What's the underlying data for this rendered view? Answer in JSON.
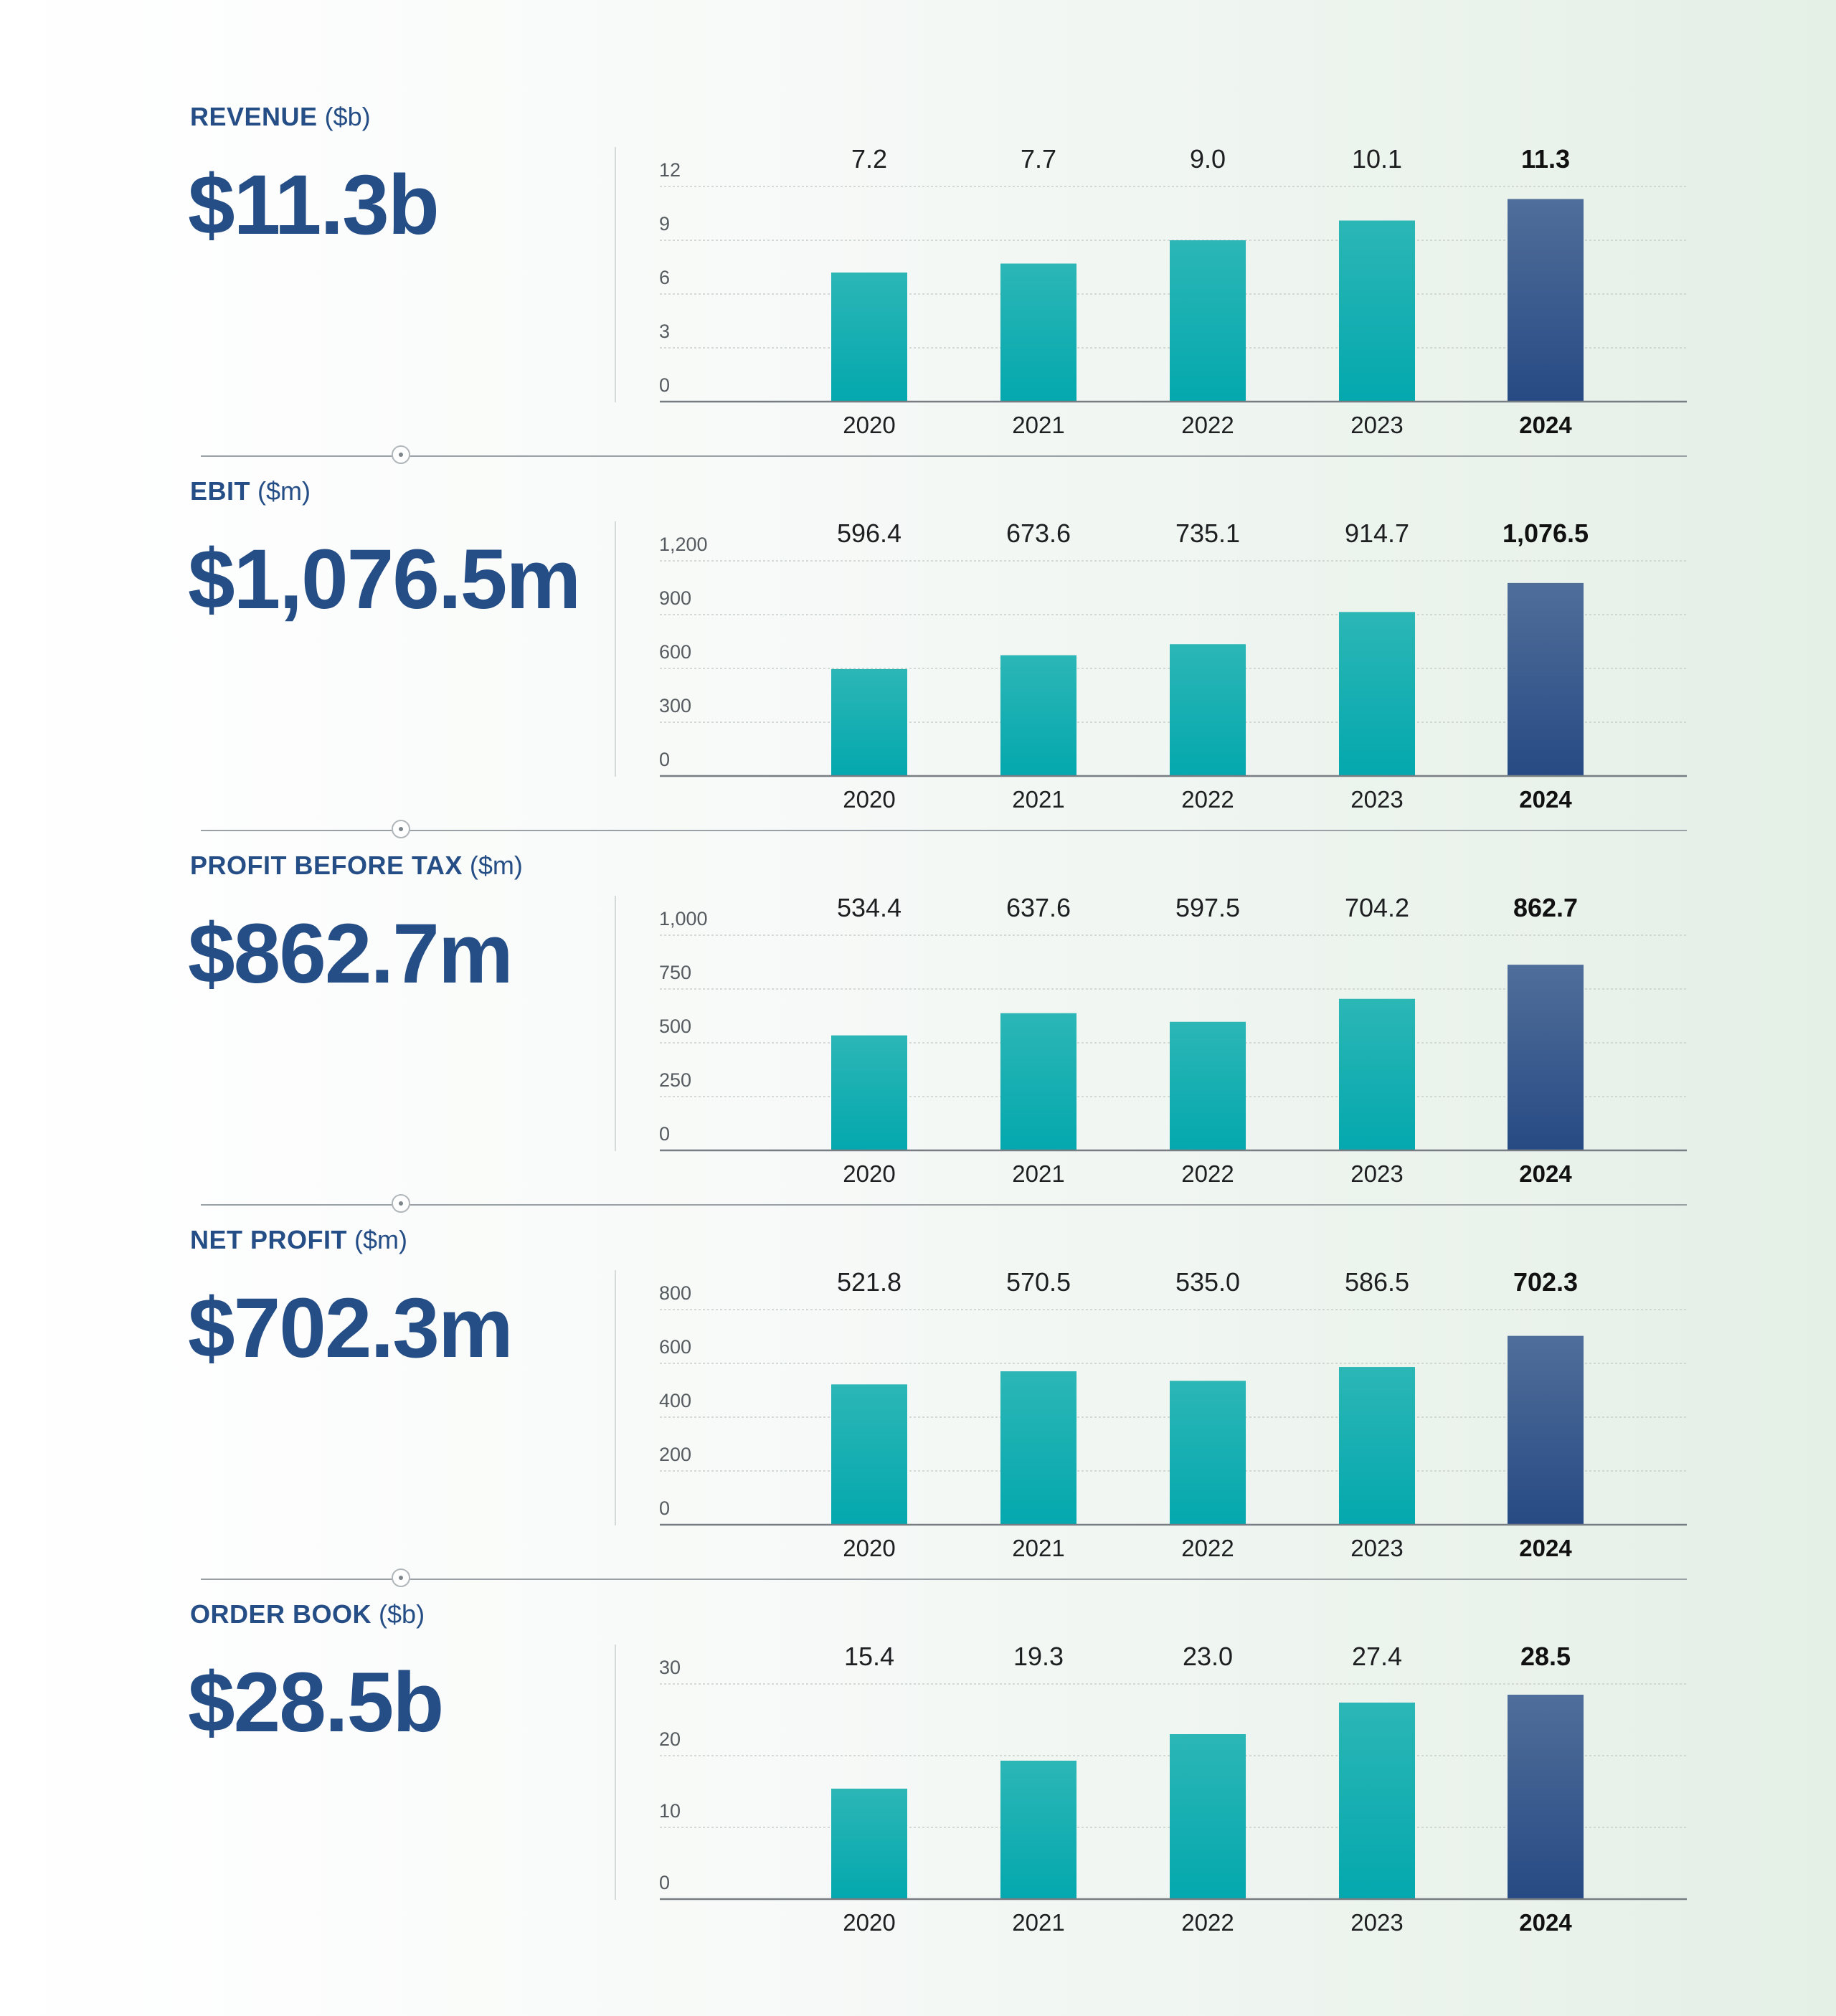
{
  "colors": {
    "title": "#254e86",
    "bar_teal_top": "#2cb6b6",
    "bar_teal_bottom": "#03a8ae",
    "bar_highlight_top": "#506e9a",
    "bar_highlight_bottom": "#274a84",
    "axis": "#777d82",
    "grid": "#c9cfcc"
  },
  "charts": [
    {
      "title": "REVENUE",
      "unit": "($b)",
      "headline": "$11.3b",
      "chart_data": {
        "type": "bar",
        "categories": [
          "2020",
          "2021",
          "2022",
          "2023",
          "2024"
        ],
        "values": [
          7.2,
          7.7,
          9.0,
          10.1,
          11.3
        ],
        "value_labels": [
          "7.2",
          "7.7",
          "9.0",
          "10.1",
          "11.3"
        ],
        "yticks": [
          "0",
          "3",
          "6",
          "9",
          "12"
        ],
        "ylim": [
          0,
          12
        ],
        "highlight_index": 4,
        "grid": true
      }
    },
    {
      "title": "EBIT",
      "unit": "($m)",
      "headline": "$1,076.5m",
      "chart_data": {
        "type": "bar",
        "categories": [
          "2020",
          "2021",
          "2022",
          "2023",
          "2024"
        ],
        "values": [
          596.4,
          673.6,
          735.1,
          914.7,
          1076.5
        ],
        "value_labels": [
          "596.4",
          "673.6",
          "735.1",
          "914.7",
          "1,076.5"
        ],
        "yticks": [
          "0",
          "300",
          "600",
          "900",
          "1,200"
        ],
        "ylim": [
          0,
          1200
        ],
        "highlight_index": 4,
        "grid": true
      }
    },
    {
      "title": "PROFIT BEFORE TAX",
      "unit": "($m)",
      "headline": "$862.7m",
      "chart_data": {
        "type": "bar",
        "categories": [
          "2020",
          "2021",
          "2022",
          "2023",
          "2024"
        ],
        "values": [
          534.4,
          637.6,
          597.5,
          704.2,
          862.7
        ],
        "value_labels": [
          "534.4",
          "637.6",
          "597.5",
          "704.2",
          "862.7"
        ],
        "yticks": [
          "0",
          "250",
          "500",
          "750",
          "1,000"
        ],
        "ylim": [
          0,
          1000
        ],
        "highlight_index": 4,
        "grid": true
      }
    },
    {
      "title": "NET PROFIT",
      "unit": "($m)",
      "headline": "$702.3m",
      "chart_data": {
        "type": "bar",
        "categories": [
          "2020",
          "2021",
          "2022",
          "2023",
          "2024"
        ],
        "values": [
          521.8,
          570.5,
          535.0,
          586.5,
          702.3
        ],
        "value_labels": [
          "521.8",
          "570.5",
          "535.0",
          "586.5",
          "702.3"
        ],
        "yticks": [
          "0",
          "200",
          "400",
          "600",
          "800"
        ],
        "ylim": [
          0,
          800
        ],
        "highlight_index": 4,
        "grid": true
      }
    },
    {
      "title": "ORDER BOOK",
      "unit": "($b)",
      "headline": "$28.5b",
      "chart_data": {
        "type": "bar",
        "categories": [
          "2020",
          "2021",
          "2022",
          "2023",
          "2024"
        ],
        "values": [
          15.4,
          19.3,
          23.0,
          27.4,
          28.5
        ],
        "value_labels": [
          "15.4",
          "19.3",
          "23.0",
          "27.4",
          "28.5"
        ],
        "yticks": [
          "0",
          "10",
          "20",
          "30"
        ],
        "ylim": [
          0,
          30
        ],
        "highlight_index": 4,
        "grid": true
      }
    }
  ]
}
